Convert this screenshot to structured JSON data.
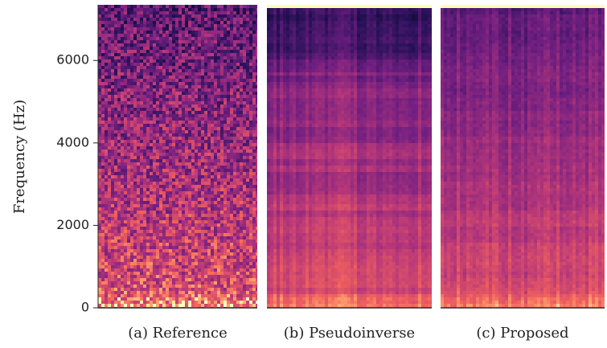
{
  "chart_data": {
    "type": "spectrogram",
    "ylabel": "Frequency (Hz)",
    "ylim": [
      0,
      7350
    ],
    "yticks": [
      0,
      2000,
      4000,
      6000
    ],
    "panels": [
      {
        "caption": "(a) Reference"
      },
      {
        "caption": "(b) Pseudoinverse"
      },
      {
        "caption": "(c) Proposed"
      }
    ]
  }
}
